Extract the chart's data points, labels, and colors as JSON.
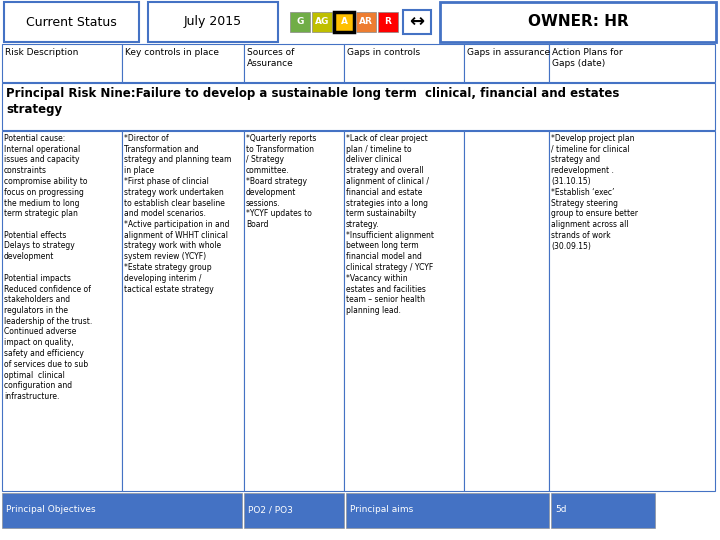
{
  "header_row1": {
    "current_status": "Current Status",
    "date": "July 2015",
    "indicators": [
      "G",
      "AG",
      "A",
      "AR",
      "R"
    ],
    "indicator_colors": [
      "#70ad47",
      "#bfbf00",
      "#ffc000",
      "#ed7d31",
      "#ff0000"
    ],
    "indicator_selected": 2,
    "arrow_symbol": "↔",
    "owner": "OWNER: HR"
  },
  "header_row2": [
    "Risk Description",
    "Key controls in place",
    "Sources of\nAssurance",
    "Gaps in controls",
    "Gaps in assurance",
    "Action Plans for\nGaps (date)"
  ],
  "principal_risk_title": "Principal Risk Nine:Failure to develop a sustainable long term  clinical, financial and estates\nstrategy",
  "col1_content": "Potential cause:\nInternal operational\nissues and capacity\nconstraints\ncompromise ability to\nfocus on progressing\nthe medium to long\nterm strategic plan\n\nPotential effects\nDelays to strategy\ndevelopment\n\nPotential impacts\nReduced confidence of\nstakeholders and\nregulators in the\nleadership of the trust.\nContinued adverse\nimpact on quality,\nsafety and efficiency\nof services due to sub\noptimal  clinical\nconfiguration and\ninfrastructure.",
  "col2_content": "*Director of\nTransformation and\nstrategy and planning team\nin place\n*First phase of clincial\nstrategy work undertaken\nto establish clear baseline\nand model scenarios.\n*Active participation in and\nalignment of WHHT clinical\nstrategy work with whole\nsystem review (YCYF)\n*Estate strategy group\ndeveloping interim /\ntactical estate strategy",
  "col3_content": "*Quarterly reports\nto Transformation\n/ Strategy\ncommittee.\n*Board strategy\ndevelopment\nsessions.\n*YCYF updates to\nBoard",
  "col4_content": "*Lack of clear project\nplan / timeline to\ndeliver clinical\nstrategy and overall\nalignment of clinical /\nfinancial and estate\nstrategies into a long\nterm sustainabilty\nstrategy.\n*Insufficient alignment\nbetween long term\nfinancial model and\nclinical strategy / YCYF\n*Vacancy within\nestates and facilities\nteam – senior health\nplanning lead.",
  "col5_content": "",
  "col6_content": "*Develop project plan\n/ timeline for clinical\nstrategy and\nredevelopment .\n(31.10.15)\n*Establish ‘exec’\nStrategy steering\ngroup to ensure better\nalignment across all\nstrands of work\n(30.09.15)",
  "footer_row": [
    "Principal Objectives",
    "PO2 / PO3",
    "Principal aims",
    "5d"
  ],
  "footer_color": "#4472c4",
  "bg_color": "#ffffff",
  "border_color": "#4472c4"
}
